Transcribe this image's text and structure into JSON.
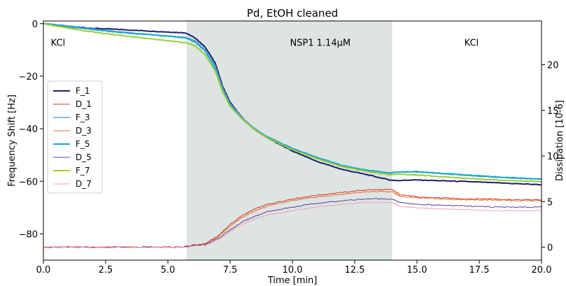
{
  "chart_data": {
    "type": "line",
    "title": "Pd, EtOH cleaned",
    "xlabel": "Time [min]",
    "ylabel": "Frequency Shift [Hz]",
    "y2label": "Dissipation [10-6]",
    "xlim": [
      0,
      20
    ],
    "ylim": [
      -90,
      1
    ],
    "y2lim": [
      -1.42,
      24.8
    ],
    "xticks": [
      0.0,
      2.5,
      5.0,
      7.5,
      10.0,
      12.5,
      15.0,
      17.5,
      20.0
    ],
    "xticklabels": [
      "0.0",
      "2.5",
      "5.0",
      "7.5",
      "10.0",
      "12.5",
      "15.0",
      "17.5",
      "20.0"
    ],
    "yticks": [
      0,
      -20,
      -40,
      -60,
      -80
    ],
    "yticklabels": [
      "0",
      "−20",
      "−40",
      "−60",
      "−80"
    ],
    "y2ticks": [
      0,
      5,
      10,
      15,
      20
    ],
    "y2ticklabels": [
      "0",
      "5",
      "10",
      "15",
      "20"
    ],
    "grid": false,
    "legend_position": "left",
    "shaded_region": {
      "x": [
        5.75,
        14.0
      ],
      "color": "#dde4e3"
    },
    "region_labels": [
      {
        "text": "KCl",
        "x": 0.3,
        "y": -8.5
      },
      {
        "text": "NSP1 1.14µM",
        "x": 9.9,
        "y": -8.5
      },
      {
        "text": "KCl",
        "x": 16.9,
        "y": -8.5
      }
    ],
    "series": [
      {
        "name": "F_1",
        "axis": "left",
        "color": "#1d1f6b",
        "width": 2.0,
        "x": [
          0,
          1,
          2,
          3,
          4,
          5,
          5.7,
          6.1,
          6.5,
          6.9,
          7.2,
          7.5,
          8.0,
          8.5,
          9,
          10,
          11,
          12,
          13,
          13.9,
          14.2,
          15,
          16,
          17,
          18,
          19,
          20
        ],
        "y": [
          0,
          -1.0,
          -1.8,
          -2.2,
          -2.7,
          -3.2,
          -3.5,
          -5.5,
          -9,
          -15,
          -24,
          -30,
          -36,
          -40.5,
          -43.5,
          -48.5,
          -52.5,
          -55.5,
          -57.5,
          -59.5,
          -59.7,
          -59.5,
          -59.8,
          -60.1,
          -60.5,
          -60.9,
          -61.3
        ]
      },
      {
        "name": "D_1",
        "axis": "right",
        "color": "#d6361e",
        "width": 1.0,
        "x": [
          0,
          2,
          4,
          5.5,
          6.5,
          7.0,
          7.5,
          8.0,
          8.5,
          9,
          10,
          11,
          12,
          13,
          14,
          14.3,
          15,
          16,
          17,
          18,
          19,
          20
        ],
        "y": [
          0,
          0,
          0,
          0,
          0.4,
          1.2,
          2.5,
          3.5,
          4.2,
          4.7,
          5.3,
          5.7,
          6.0,
          6.3,
          6.3,
          5.8,
          5.5,
          5.4,
          5.3,
          5.3,
          5.2,
          5.2
        ]
      },
      {
        "name": "F_3",
        "axis": "left",
        "color": "#5aa8d8",
        "width": 1.5,
        "x": [
          0,
          1,
          2,
          3,
          4,
          5,
          5.7,
          6.1,
          6.5,
          6.9,
          7.2,
          7.5,
          8.0,
          8.5,
          9,
          10,
          11,
          12,
          13,
          13.9,
          14.2,
          15,
          16,
          17,
          18,
          19,
          20
        ],
        "y": [
          0.2,
          -0.9,
          -2.0,
          -3.0,
          -3.9,
          -4.7,
          -5.2,
          -6.5,
          -10,
          -16,
          -24.5,
          -30.5,
          -36,
          -40,
          -43,
          -47.5,
          -51,
          -54,
          -55.8,
          -57,
          -56.5,
          -56.5,
          -57.2,
          -57.8,
          -58.4,
          -58.9,
          -59.3
        ]
      },
      {
        "name": "D_3",
        "axis": "right",
        "color": "#e36c2f",
        "width": 1.0,
        "x": [
          0,
          2,
          4,
          5.5,
          6.5,
          7.0,
          7.5,
          8.0,
          8.5,
          9,
          10,
          11,
          12,
          13,
          14,
          14.3,
          15,
          16,
          17,
          18,
          19,
          20
        ],
        "y": [
          0,
          0,
          0,
          0,
          0.3,
          1.1,
          2.3,
          3.3,
          4.0,
          4.5,
          5.1,
          5.5,
          5.8,
          6.1,
          6.1,
          5.6,
          5.4,
          5.3,
          5.2,
          5.2,
          5.1,
          5.1
        ]
      },
      {
        "name": "F_5",
        "axis": "left",
        "color": "#1aa9cf",
        "width": 2.0,
        "x": [
          0,
          1,
          2,
          3,
          4,
          5,
          5.7,
          6.1,
          6.5,
          6.9,
          7.2,
          7.5,
          8.0,
          8.5,
          9,
          10,
          11,
          12,
          13,
          13.9,
          14.2,
          15,
          16,
          17,
          18,
          19,
          20
        ],
        "y": [
          0,
          -1.2,
          -2.3,
          -3.3,
          -4.0,
          -4.8,
          -5.4,
          -7,
          -10.5,
          -17,
          -25.5,
          -31,
          -36.5,
          -40.5,
          -43.2,
          -47.5,
          -51,
          -54,
          -55.8,
          -56.8,
          -56.5,
          -56.3,
          -57,
          -57.6,
          -58.2,
          -58.7,
          -59.1
        ]
      },
      {
        "name": "D_5",
        "axis": "right",
        "color": "#5b3f9a",
        "width": 1.0,
        "x": [
          0,
          2,
          4,
          5.5,
          6.5,
          7.0,
          7.5,
          8.0,
          8.5,
          9,
          10,
          11,
          12,
          13,
          14,
          14.3,
          15,
          16,
          17,
          18,
          19,
          20
        ],
        "y": [
          0,
          0,
          0,
          0,
          0.3,
          0.9,
          1.9,
          2.8,
          3.4,
          3.9,
          4.4,
          4.8,
          5.1,
          5.3,
          5.3,
          4.9,
          4.7,
          4.6,
          4.5,
          4.4,
          4.4,
          4.4
        ]
      },
      {
        "name": "F_7",
        "axis": "left",
        "color": "#9acd32",
        "width": 2.0,
        "x": [
          0,
          1,
          2,
          3,
          4,
          5,
          5.7,
          6.1,
          6.5,
          6.9,
          7.2,
          7.5,
          8.0,
          8.5,
          9,
          10,
          11,
          12,
          13,
          13.9,
          14.2,
          15,
          16,
          17,
          18,
          19,
          20
        ],
        "y": [
          0,
          -1.8,
          -3.2,
          -4.4,
          -5.5,
          -6.5,
          -7.2,
          -8.5,
          -12,
          -18,
          -26,
          -31.5,
          -36.5,
          -40.5,
          -43.5,
          -48,
          -51.5,
          -54.5,
          -56.3,
          -57.5,
          -57.3,
          -57.6,
          -58.3,
          -58.9,
          -59.4,
          -59.8,
          -60.2
        ]
      },
      {
        "name": "D_7",
        "axis": "right",
        "color": "#f0a0b0",
        "width": 1.0,
        "x": [
          0,
          2,
          4,
          5.5,
          6.5,
          7.0,
          7.5,
          8.0,
          8.5,
          9,
          10,
          11,
          12,
          13,
          14,
          14.3,
          15,
          16,
          17,
          18,
          19,
          20
        ],
        "y": [
          0,
          0,
          0,
          0,
          0.2,
          0.8,
          1.7,
          2.5,
          3.1,
          3.5,
          4.0,
          4.4,
          4.7,
          4.9,
          4.9,
          4.5,
          4.3,
          4.2,
          4.1,
          4.0,
          4.0,
          4.0
        ]
      }
    ]
  }
}
